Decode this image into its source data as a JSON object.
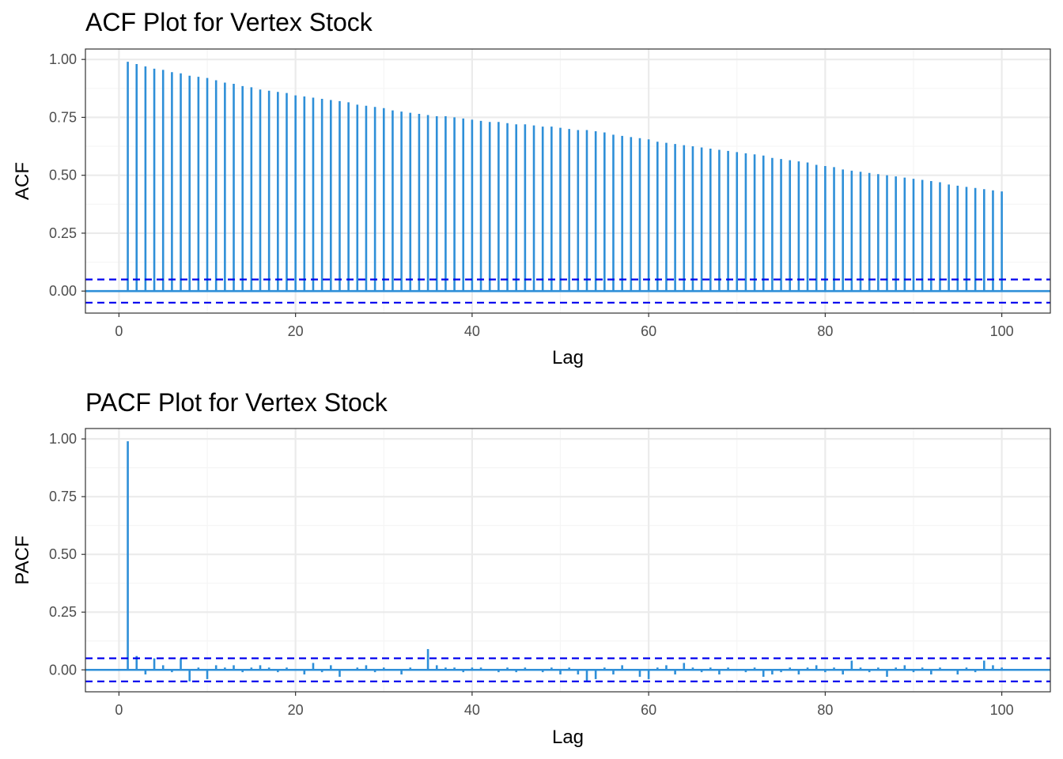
{
  "colors": {
    "bar": "#2E8FD8",
    "ci": "#0000EE",
    "grid_major": "#EBEBEB",
    "grid_minor": "#F5F5F5",
    "panel_border": "#333333",
    "tick_text": "#4D4D4D"
  },
  "chart_data": [
    {
      "type": "bar",
      "title": "ACF Plot for Vertex Stock",
      "xlabel": "Lag",
      "ylabel": "ACF",
      "xlim": [
        -3.8,
        105.5
      ],
      "ylim": [
        -0.095,
        1.045
      ],
      "x_ticks": [
        0,
        20,
        40,
        60,
        80,
        100
      ],
      "y_ticks": [
        0.0,
        0.25,
        0.5,
        0.75,
        1.0
      ],
      "y_tick_labels": [
        "0.00",
        "0.25",
        "0.50",
        "0.75",
        "1.00"
      ],
      "ci": 0.05,
      "grid": true,
      "lags_start": 1,
      "values": [
        0.99,
        0.98,
        0.97,
        0.96,
        0.955,
        0.945,
        0.94,
        0.93,
        0.925,
        0.92,
        0.91,
        0.9,
        0.895,
        0.885,
        0.88,
        0.87,
        0.865,
        0.86,
        0.855,
        0.845,
        0.84,
        0.835,
        0.83,
        0.825,
        0.82,
        0.815,
        0.805,
        0.8,
        0.795,
        0.79,
        0.78,
        0.775,
        0.77,
        0.765,
        0.76,
        0.755,
        0.755,
        0.75,
        0.745,
        0.74,
        0.735,
        0.73,
        0.73,
        0.725,
        0.72,
        0.72,
        0.715,
        0.71,
        0.71,
        0.705,
        0.7,
        0.695,
        0.695,
        0.69,
        0.685,
        0.675,
        0.67,
        0.665,
        0.66,
        0.655,
        0.645,
        0.64,
        0.635,
        0.63,
        0.625,
        0.62,
        0.615,
        0.61,
        0.605,
        0.6,
        0.595,
        0.59,
        0.585,
        0.575,
        0.57,
        0.565,
        0.56,
        0.555,
        0.545,
        0.54,
        0.535,
        0.525,
        0.52,
        0.515,
        0.51,
        0.505,
        0.5,
        0.495,
        0.49,
        0.485,
        0.48,
        0.475,
        0.47,
        0.46,
        0.455,
        0.45,
        0.445,
        0.44,
        0.435,
        0.43
      ]
    },
    {
      "type": "bar",
      "title": "PACF Plot for Vertex Stock",
      "xlabel": "Lag",
      "ylabel": "PACF",
      "xlim": [
        -3.8,
        105.5
      ],
      "ylim": [
        -0.095,
        1.045
      ],
      "x_ticks": [
        0,
        20,
        40,
        60,
        80,
        100
      ],
      "y_ticks": [
        0.0,
        0.25,
        0.5,
        0.75,
        1.0
      ],
      "y_tick_labels": [
        "0.00",
        "0.25",
        "0.50",
        "0.75",
        "1.00"
      ],
      "ci": 0.05,
      "grid": true,
      "lags_start": 1,
      "values": [
        0.99,
        0.06,
        -0.02,
        0.05,
        0.02,
        -0.01,
        0.05,
        -0.05,
        0.01,
        -0.04,
        0.02,
        0.01,
        0.02,
        -0.01,
        0.01,
        0.02,
        0.01,
        -0.01,
        0.01,
        0.0,
        -0.02,
        0.03,
        -0.01,
        0.02,
        -0.03,
        0.0,
        0.01,
        0.02,
        -0.01,
        0.01,
        0.0,
        -0.02,
        0.01,
        0.0,
        0.09,
        0.02,
        0.01,
        0.01,
        -0.01,
        0.01,
        0.01,
        0.0,
        -0.01,
        0.01,
        -0.01,
        0.01,
        0.0,
        -0.01,
        0.01,
        -0.02,
        0.01,
        -0.02,
        -0.05,
        -0.04,
        0.01,
        -0.02,
        0.02,
        0.0,
        -0.03,
        -0.04,
        0.01,
        0.02,
        -0.02,
        0.03,
        0.01,
        -0.01,
        0.01,
        -0.02,
        0.01,
        0.0,
        -0.01,
        0.01,
        -0.03,
        -0.02,
        -0.01,
        0.01,
        -0.02,
        0.01,
        0.02,
        -0.01,
        0.01,
        -0.02,
        0.04,
        0.01,
        -0.01,
        0.01,
        -0.03,
        0.01,
        0.02,
        -0.01,
        0.01,
        -0.02,
        0.01,
        0.0,
        -0.02,
        0.01,
        -0.01,
        0.04,
        0.02,
        0.01
      ]
    }
  ]
}
